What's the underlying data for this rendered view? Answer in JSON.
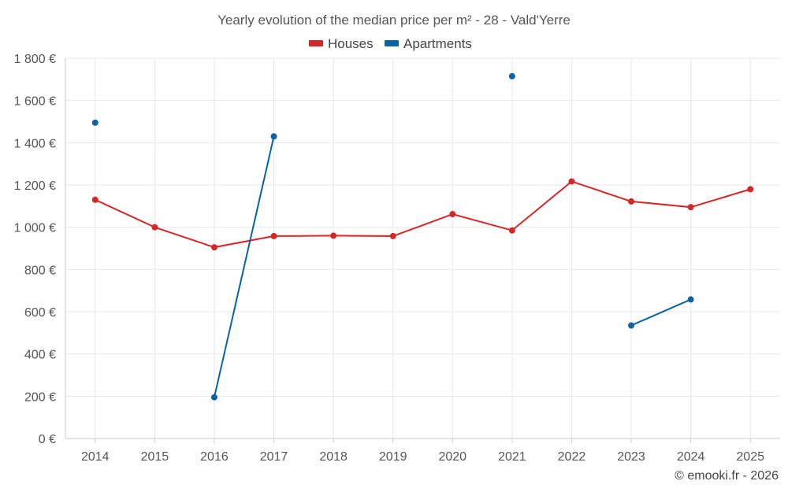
{
  "chart_data": {
    "type": "line",
    "title": "Yearly evolution of the median price per m² - 28 - Vald'Yerre",
    "categories": [
      "2014",
      "2015",
      "2016",
      "2017",
      "2018",
      "2019",
      "2020",
      "2021",
      "2022",
      "2023",
      "2024",
      "2025"
    ],
    "y_ticks": [
      "0 €",
      "200 €",
      "400 €",
      "600 €",
      "800 €",
      "1 000 €",
      "1 200 €",
      "1 400 €",
      "1 600 €",
      "1 800 €"
    ],
    "ylim": [
      0,
      1800
    ],
    "grid": true,
    "legend_position": "top-center",
    "series": [
      {
        "name": "Houses",
        "color": "#d62728",
        "values": [
          1130,
          1000,
          905,
          958,
          960,
          958,
          1062,
          985,
          1217,
          1122,
          1095,
          1180
        ]
      },
      {
        "name": "Apartments",
        "color": "#0b63a3",
        "values": [
          1495,
          null,
          195,
          1430,
          null,
          null,
          null,
          1715,
          null,
          535,
          658,
          null
        ]
      }
    ]
  },
  "credit": "© emooki.fr - 2026"
}
